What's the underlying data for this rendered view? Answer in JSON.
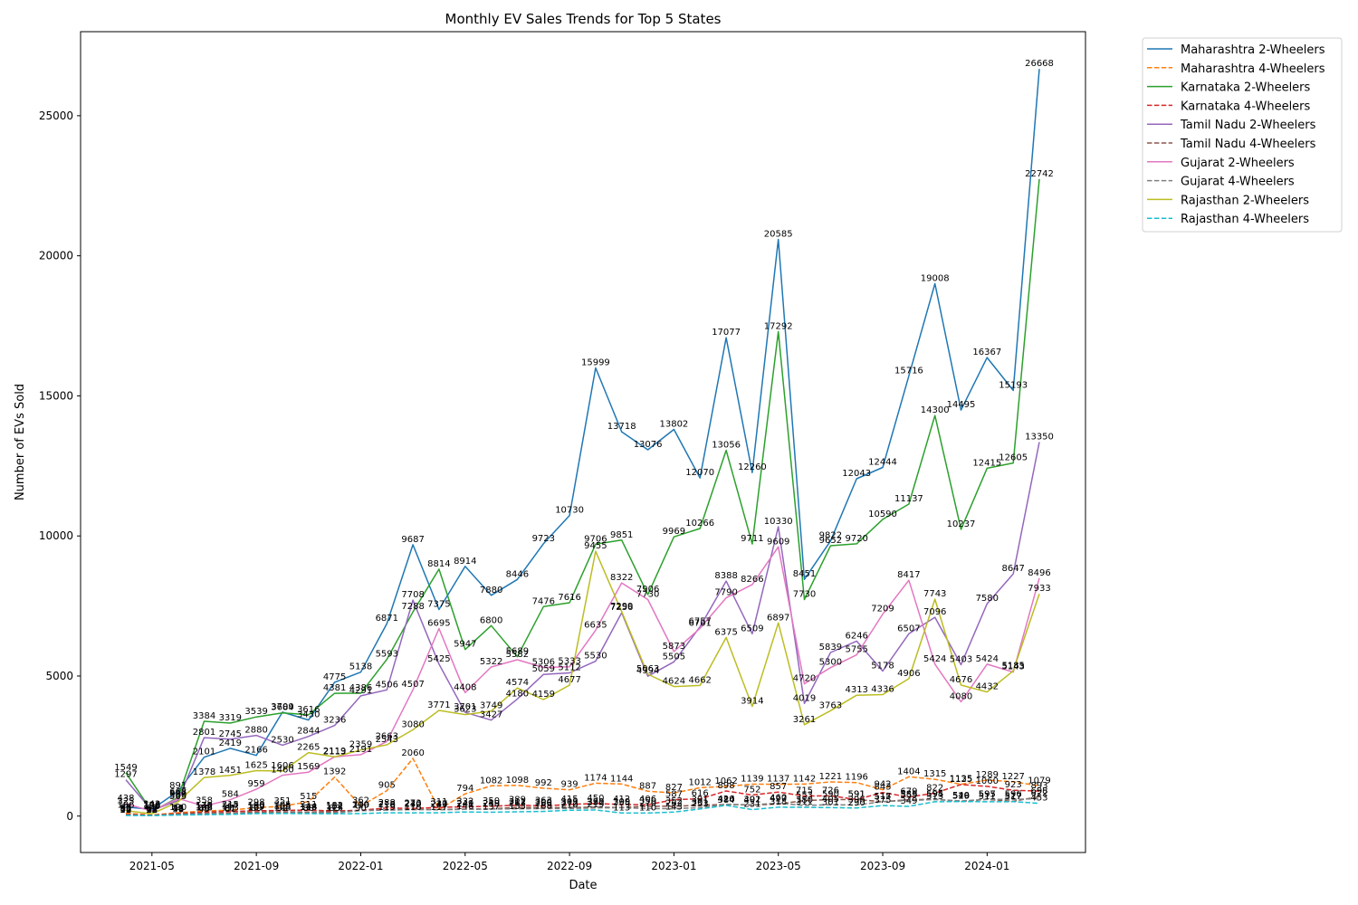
{
  "chart_data": {
    "type": "line",
    "title": "Monthly EV Sales Trends for Top 5 States",
    "xlabel": "Date",
    "ylabel": "Number of EVs Sold",
    "x": [
      "2021-04",
      "2021-05",
      "2021-06",
      "2021-07",
      "2021-08",
      "2021-09",
      "2021-10",
      "2021-11",
      "2021-12",
      "2022-01",
      "2022-02",
      "2022-03",
      "2022-04",
      "2022-05",
      "2022-06",
      "2022-07",
      "2022-08",
      "2022-09",
      "2022-10",
      "2022-11",
      "2022-12",
      "2023-01",
      "2023-02",
      "2023-03",
      "2023-04",
      "2023-05",
      "2023-06",
      "2023-07",
      "2023-08",
      "2023-09",
      "2023-10",
      "2023-11",
      "2023-12",
      "2024-01",
      "2024-02",
      "2024-03"
    ],
    "x_ticks": [
      "2021-05",
      "2021-09",
      "2022-01",
      "2022-05",
      "2022-09",
      "2023-01",
      "2023-05",
      "2023-09",
      "2024-01"
    ],
    "ylim": [
      -1300,
      28000
    ],
    "y_ticks": [
      0,
      5000,
      10000,
      15000,
      20000,
      25000
    ],
    "grid": false,
    "legend_position": "outside-top-right",
    "series": [
      {
        "name": "Maharashtra 2-Wheelers",
        "color": "#1f77b4",
        "style": "solid",
        "values": [
          325,
          242,
          891,
          2101,
          2419,
          2166,
          3709,
          3430,
          4775,
          5138,
          6871,
          9687,
          7375,
          8914,
          7880,
          8446,
          9723,
          10730,
          15999,
          13718,
          13076,
          13802,
          12070,
          17077,
          12260,
          20585,
          8451,
          9822,
          12043,
          12444,
          15716,
          19008,
          14495,
          16367,
          15193,
          26668
        ]
      },
      {
        "name": "Maharashtra 4-Wheelers",
        "color": "#ff7f0e",
        "style": "dashed",
        "values": [
          98,
          42,
          120,
          179,
          215,
          298,
          351,
          515,
          1392,
          362,
          905,
          2060,
          241,
          794,
          1082,
          1098,
          992,
          939,
          1174,
          1144,
          887,
          827,
          1012,
          1062,
          1139,
          1137,
          1142,
          1221,
          1196,
          942,
          1404,
          1315,
          1135,
          1289,
          1227,
          1079
        ]
      },
      {
        "name": "Karnataka 2-Wheelers",
        "color": "#2ca02c",
        "style": "solid",
        "values": [
          1549,
          159,
          668,
          3384,
          3319,
          3539,
          3684,
          3616,
          4381,
          4386,
          5593,
          7288,
          8814,
          5947,
          6800,
          5689,
          7476,
          7616,
          9706,
          9851,
          7906,
          9969,
          10266,
          13056,
          9711,
          17292,
          7730,
          9652,
          9720,
          10590,
          11137,
          14300,
          10237,
          12415,
          12605,
          22742
        ]
      },
      {
        "name": "Karnataka 4-Wheelers",
        "color": "#d62728",
        "style": "dashed",
        "values": [
          65,
          32,
          88,
          145,
          167,
          190,
          205,
          211,
          182,
          210,
          288,
          273,
          311,
          332,
          350,
          389,
          363,
          415,
          450,
          412,
          406,
          587,
          616,
          898,
          752,
          857,
          715,
          726,
          591,
          843,
          679,
          822,
          1125,
          1060,
          923,
          893
        ]
      },
      {
        "name": "Tamil Nadu 2-Wheelers",
        "color": "#9467bd",
        "style": "solid",
        "values": [
          1297,
          196,
          560,
          2801,
          2745,
          2880,
          2530,
          2844,
          3236,
          4291,
          4506,
          7708,
          5425,
          3701,
          3427,
          4180,
          5059,
          5112,
          5530,
          7256,
          4994,
          5505,
          6757,
          8388,
          6509,
          10330,
          4019,
          5839,
          6246,
          5178,
          6507,
          7096,
          5403,
          7580,
          8647,
          13350
        ]
      },
      {
        "name": "Tamil Nadu 4-Wheelers",
        "color": "#8c564b",
        "style": "dashed",
        "values": [
          42,
          25,
          71,
          108,
          113,
          139,
          155,
          144,
          151,
          199,
          216,
          240,
          230,
          249,
          258,
          311,
          300,
          309,
          320,
          309,
          350,
          352,
          391,
          416,
          392,
          427,
          553,
          590,
          591,
          517,
          585,
          595,
          526,
          597,
          527,
          698
        ]
      },
      {
        "name": "Gujarat 2-Wheelers",
        "color": "#e377c2",
        "style": "solid",
        "values": [
          438,
          178,
          627,
          358,
          584,
          959,
          1460,
          1569,
          2119,
          2191,
          2663,
          4507,
          6695,
          4408,
          5322,
          5582,
          5306,
          5333,
          6635,
          8322,
          7730,
          5873,
          6701,
          7790,
          8266,
          9609,
          4720,
          5300,
          5755,
          7209,
          8417,
          5424,
          4080,
          5424,
          5143,
          8496
        ]
      },
      {
        "name": "Gujarat 4-Wheelers",
        "color": "#7f7f7f",
        "style": "dashed",
        "values": [
          36,
          21,
          49,
          83,
          87,
          107,
          108,
          118,
          113,
          200,
          218,
          230,
          227,
          241,
          249,
          263,
          266,
          272,
          292,
          298,
          270,
          262,
          301,
          420,
          401,
          460,
          380,
          405,
          396,
          515,
          559,
          594,
          540,
          595,
          596,
          622
        ]
      },
      {
        "name": "Rajasthan 2-Wheelers",
        "color": "#bcbd22",
        "style": "solid",
        "values": [
          196,
          82,
          505,
          1378,
          1451,
          1625,
          1606,
          2265,
          2113,
          2359,
          2543,
          3080,
          3771,
          3623,
          3749,
          4574,
          4159,
          4677,
          9455,
          7299,
          5063,
          4624,
          4662,
          6375,
          3914,
          6897,
          3261,
          3763,
          4313,
          4336,
          4906,
          7743,
          4676,
          4432,
          5185,
          7933
        ]
      },
      {
        "name": "Rajasthan 4-Wheelers",
        "color": "#17becf",
        "style": "dashed",
        "values": [
          22,
          18,
          36,
          49,
          61,
          89,
          92,
          88,
          83,
          90,
          119,
          116,
          117,
          146,
          137,
          155,
          168,
          210,
          219,
          113,
          110,
          143,
          253,
          384,
          231,
          318,
          311,
          301,
          290,
          375,
          349,
          513,
          519,
          511,
          517,
          453
        ]
      }
    ]
  }
}
